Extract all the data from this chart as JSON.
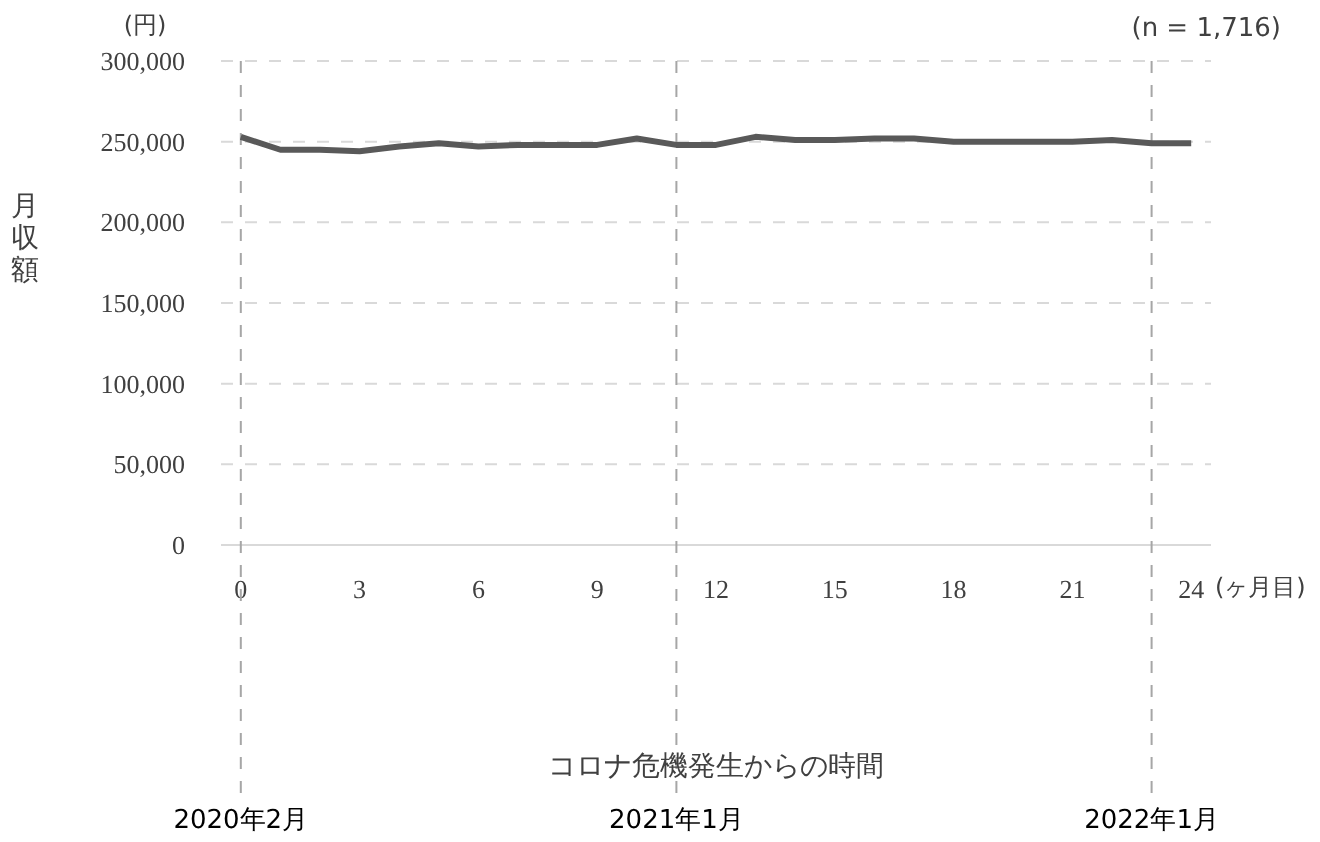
{
  "chart_data": {
    "type": "line",
    "ylabel": "月収額",
    "x": [
      0,
      1,
      2,
      3,
      4,
      5,
      6,
      7,
      8,
      9,
      10,
      11,
      12,
      13,
      14,
      15,
      16,
      17,
      18,
      19,
      20,
      21,
      22,
      23,
      24
    ],
    "series": [
      {
        "color": "#595959",
        "values": [
          253000,
          245000,
          245000,
          244000,
          247000,
          249000,
          247000,
          248000,
          248000,
          248000,
          252000,
          248000,
          248000,
          253000,
          251000,
          251000,
          252000,
          252000,
          250000,
          250000,
          250000,
          250000,
          251000,
          249000,
          249000
        ]
      }
    ],
    "xlim": [
      -0.5,
      24.5
    ],
    "ylim": [
      0,
      300000
    ],
    "xticks": [
      0,
      3,
      6,
      9,
      12,
      15,
      18,
      21,
      24
    ],
    "yticks": [
      {
        "value": 0,
        "label": "0"
      },
      {
        "value": 50000,
        "label": "50,000"
      },
      {
        "value": 100000,
        "label": "100,000"
      },
      {
        "value": 150000,
        "label": "150,000"
      },
      {
        "value": 200000,
        "label": "200,000"
      },
      {
        "value": 250000,
        "label": "250,000"
      },
      {
        "value": 300000,
        "label": "300,000"
      }
    ],
    "ref_lines": [
      {
        "axis": "x",
        "value": 0,
        "label": "2020年2月",
        "color": "#a6a6a6",
        "line_style": "dashed"
      },
      {
        "axis": "x",
        "value": 11,
        "label": "2021年1月",
        "color": "#a6a6a6",
        "line_style": "dashed"
      },
      {
        "axis": "x",
        "value": 23,
        "label": "2022年1月",
        "color": "#a6a6a6",
        "line_style": "dashed"
      }
    ],
    "annotations": [
      "(円)",
      "(n = 1,716)",
      "(ヶ月目)",
      "コロナ危機発生からの時間"
    ],
    "grid": "y",
    "marker": "none",
    "line_style": "solid"
  }
}
